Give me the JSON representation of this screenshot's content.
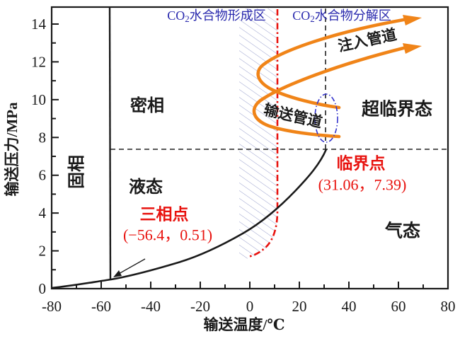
{
  "chart_data": {
    "type": "line",
    "xlabel": "输送温度/℃",
    "ylabel": "输送压力/MPa",
    "xlim": [
      -80,
      80
    ],
    "ylim": [
      0,
      14.9
    ],
    "x_ticks": [
      -80,
      -60,
      -40,
      -20,
      0,
      20,
      40,
      60,
      80
    ],
    "y_ticks": [
      0,
      2,
      4,
      6,
      8,
      10,
      12,
      14
    ],
    "grid": false,
    "regions": {
      "solid": "固相",
      "dense": "密相",
      "liquid": "液态",
      "gas": "气态",
      "supercritical": "超临界态"
    },
    "zones": {
      "formation": {
        "pre": "CO",
        "sub": "2",
        "post": "水合物形成区"
      },
      "decomposition": {
        "pre": "CO",
        "sub": "2",
        "post": "水合物分解区"
      }
    },
    "pipelines": {
      "injection": {
        "label": "注入管道",
        "path_T_P_approx": [
          [
            6,
            10.2
          ],
          [
            20,
            11.3
          ],
          [
            40,
            12.6
          ],
          [
            62,
            14.2
          ]
        ]
      },
      "transport": {
        "label": "输送管道",
        "path_T_P_approx": [
          [
            35,
            8.1
          ],
          [
            10,
            8.6
          ],
          [
            1,
            9.3
          ],
          [
            8,
            10.0
          ],
          [
            35,
            9.6
          ]
        ]
      }
    },
    "critical_point": {
      "label": "临界点",
      "coords": "(31.06，7.39)",
      "T": 31.06,
      "P": 7.39
    },
    "triple_point": {
      "label": "三相点",
      "coords": "(−56.4，0.51)",
      "T": -56.4,
      "P": 0.51
    },
    "reference_lines": {
      "critical_pressure_dashed_MPa": 7.39,
      "critical_temperature_dashed_C": 31.06,
      "hydrate_boundary_dashdot_C": 11
    },
    "curves": {
      "saturation_points_T_P": [
        [
          -80,
          0.05
        ],
        [
          -70,
          0.2
        ],
        [
          -60,
          0.4
        ],
        [
          -56.4,
          0.51
        ],
        [
          -50,
          0.68
        ],
        [
          -40,
          1.0
        ],
        [
          -30,
          1.43
        ],
        [
          -20,
          1.97
        ],
        [
          -10,
          2.65
        ],
        [
          0,
          3.49
        ],
        [
          10,
          4.5
        ],
        [
          20,
          5.73
        ],
        [
          31.06,
          7.39
        ]
      ],
      "melting_points_T_P": [
        [
          -56.4,
          0.51
        ],
        [
          -56.4,
          14.9
        ]
      ],
      "hydrate_boundary_points_T_P": [
        [
          0,
          1.7
        ],
        [
          5,
          2.3
        ],
        [
          9,
          3.5
        ],
        [
          11,
          5.0
        ],
        [
          11,
          14.9
        ]
      ]
    },
    "colors": {
      "pipeline_orange": "#f08418",
      "boundary_red": "#e8120e",
      "zone_blue": "#2a2aae",
      "ellipse_blue": "#3535cc",
      "hatch": "#a0a6d0",
      "line_black": "#1a1a1a"
    }
  }
}
